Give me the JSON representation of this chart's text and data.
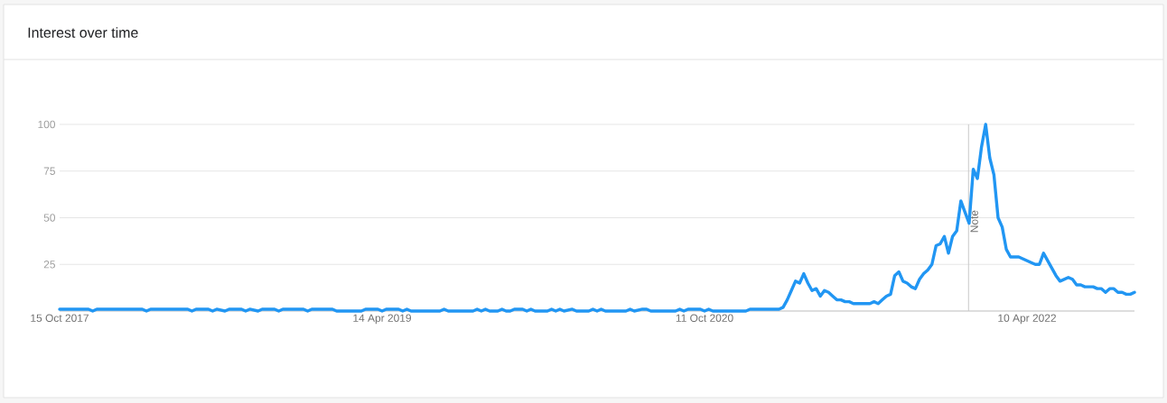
{
  "chart_data": {
    "type": "line",
    "title": "Interest over time",
    "x": [
      "2017-10-15",
      "2017-12-03",
      "2017-12-10",
      "2017-12-17",
      "2018-03-04",
      "2018-03-11",
      "2018-03-18",
      "2018-05-20",
      "2018-05-27",
      "2018-06-03",
      "2018-06-24",
      "2018-07-01",
      "2018-07-08",
      "2018-07-22",
      "2018-07-29",
      "2018-08-19",
      "2018-08-26",
      "2018-09-02",
      "2018-09-16",
      "2018-09-23",
      "2018-10-14",
      "2018-10-21",
      "2018-10-28",
      "2018-12-02",
      "2018-12-09",
      "2018-12-16",
      "2019-01-20",
      "2019-01-27",
      "2019-03-10",
      "2019-03-17",
      "2019-04-07",
      "2019-04-14",
      "2019-04-21",
      "2019-05-12",
      "2019-05-19",
      "2019-05-26",
      "2019-06-02",
      "2019-07-21",
      "2019-07-28",
      "2019-08-04",
      "2019-09-15",
      "2019-09-22",
      "2019-09-29",
      "2019-10-06",
      "2019-10-13",
      "2019-10-27",
      "2019-11-03",
      "2019-11-10",
      "2019-11-17",
      "2019-11-24",
      "2019-12-08",
      "2019-12-15",
      "2019-12-22",
      "2019-12-29",
      "2020-01-19",
      "2020-01-26",
      "2020-02-02",
      "2020-02-09",
      "2020-02-16",
      "2020-03-01",
      "2020-03-08",
      "2020-03-29",
      "2020-04-05",
      "2020-04-12",
      "2020-04-19",
      "2020-04-26",
      "2020-05-31",
      "2020-06-07",
      "2020-06-14",
      "2020-06-28",
      "2020-07-05",
      "2020-07-12",
      "2020-08-23",
      "2020-08-30",
      "2020-09-06",
      "2020-09-13",
      "2020-10-04",
      "2020-10-11",
      "2020-10-18",
      "2020-10-25",
      "2020-12-20",
      "2020-12-27",
      "2021-02-14",
      "2021-02-21",
      "2021-02-28",
      "2021-03-07",
      "2021-03-14",
      "2021-03-21",
      "2021-03-28",
      "2021-04-04",
      "2021-04-11",
      "2021-04-18",
      "2021-04-25",
      "2021-05-02",
      "2021-05-09",
      "2021-05-16",
      "2021-05-23",
      "2021-05-30",
      "2021-06-06",
      "2021-06-13",
      "2021-06-20",
      "2021-06-27",
      "2021-07-04",
      "2021-07-11",
      "2021-07-18",
      "2021-07-25",
      "2021-08-01",
      "2021-08-08",
      "2021-08-15",
      "2021-08-22",
      "2021-08-29",
      "2021-09-05",
      "2021-09-12",
      "2021-09-19",
      "2021-09-26",
      "2021-10-03",
      "2021-10-10",
      "2021-10-17",
      "2021-10-24",
      "2021-10-31",
      "2021-11-07",
      "2021-11-14",
      "2021-11-21",
      "2021-11-28",
      "2021-12-05",
      "2021-12-12",
      "2021-12-19",
      "2021-12-26",
      "2022-01-02",
      "2022-01-09",
      "2022-01-16",
      "2022-01-23",
      "2022-01-30",
      "2022-02-06",
      "2022-02-13",
      "2022-02-20",
      "2022-02-27",
      "2022-03-06",
      "2022-03-13",
      "2022-03-20",
      "2022-03-27",
      "2022-04-03",
      "2022-04-10",
      "2022-04-17",
      "2022-04-24",
      "2022-05-01",
      "2022-05-08",
      "2022-05-15",
      "2022-05-22",
      "2022-05-29",
      "2022-06-05",
      "2022-06-12",
      "2022-06-19",
      "2022-06-26",
      "2022-07-03",
      "2022-07-10",
      "2022-07-17",
      "2022-07-24",
      "2022-07-31",
      "2022-08-07",
      "2022-08-14",
      "2022-08-21",
      "2022-08-28",
      "2022-09-04",
      "2022-09-11",
      "2022-09-18",
      "2022-09-25",
      "2022-10-02",
      "2022-10-09"
    ],
    "series": [
      {
        "color": "#2196f3",
        "values": [
          1,
          1,
          0,
          1,
          1,
          0,
          1,
          1,
          0,
          1,
          1,
          0,
          1,
          0,
          1,
          1,
          0,
          1,
          0,
          1,
          1,
          0,
          1,
          1,
          0,
          1,
          1,
          0,
          0,
          1,
          1,
          0,
          1,
          1,
          0,
          1,
          0,
          0,
          1,
          0,
          0,
          1,
          0,
          1,
          0,
          0,
          1,
          0,
          0,
          1,
          1,
          0,
          1,
          0,
          0,
          1,
          0,
          1,
          0,
          1,
          0,
          0,
          1,
          0,
          1,
          0,
          0,
          1,
          0,
          1,
          1,
          0,
          0,
          1,
          0,
          1,
          1,
          0,
          1,
          0,
          0,
          1,
          1,
          2,
          6,
          11,
          16,
          15,
          20,
          15,
          11,
          12,
          8,
          11,
          10,
          8,
          6,
          6,
          5,
          5,
          4,
          4,
          4,
          4,
          4,
          5,
          4,
          6,
          8,
          9,
          19,
          21,
          16,
          15,
          13,
          12,
          17,
          20,
          22,
          25,
          35,
          36,
          40,
          31,
          40,
          43,
          59,
          53,
          47,
          76,
          71,
          88,
          100,
          82,
          73,
          50,
          45,
          33,
          29,
          29,
          29,
          28,
          27,
          26,
          25,
          25,
          31,
          27,
          23,
          19,
          16,
          17,
          18,
          17,
          14,
          14,
          13,
          13,
          13,
          12,
          12,
          10,
          12,
          12,
          10,
          10,
          9,
          9,
          10
        ]
      }
    ],
    "xlim": [
      "2017-10-15",
      "2022-10-09"
    ],
    "xticks": [
      {
        "value": "2017-10-15",
        "label": "15 Oct 2017"
      },
      {
        "value": "2019-04-14",
        "label": "14 Apr 2019"
      },
      {
        "value": "2020-10-11",
        "label": "11 Oct 2020"
      },
      {
        "value": "2022-04-10",
        "label": "10 Apr 2022"
      }
    ],
    "ylim": [
      0,
      100
    ],
    "yticks": [
      25,
      50,
      75,
      100
    ],
    "grid": "y",
    "ref_lines": [
      {
        "axis": "x",
        "value": "2022-01-01",
        "label": "Note",
        "color": "#c8c8c8"
      }
    ]
  }
}
